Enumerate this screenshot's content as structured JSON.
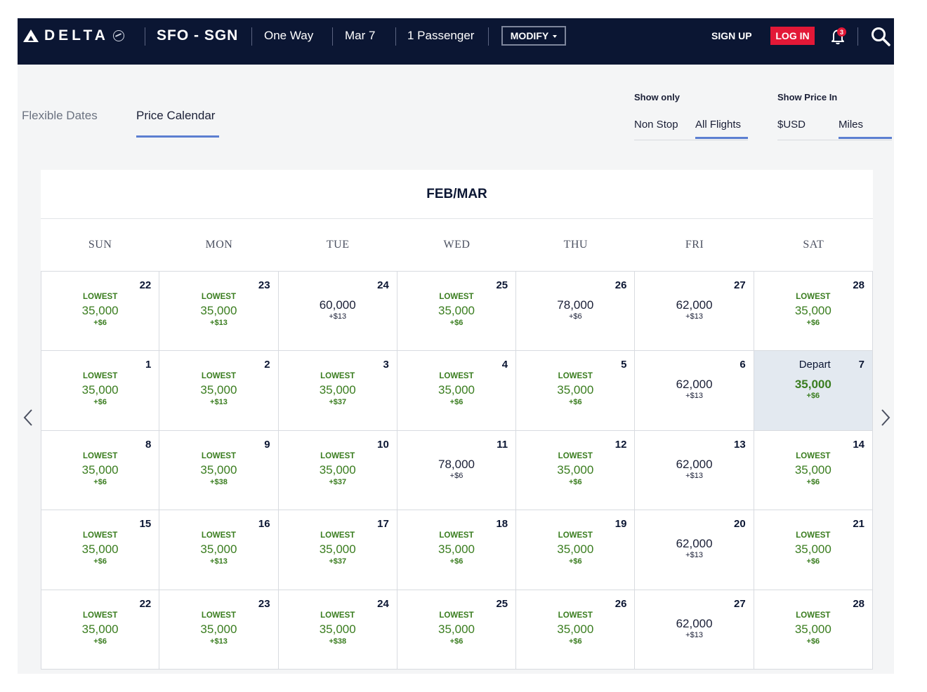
{
  "header": {
    "brand": "DELTA",
    "route": "SFO - SGN",
    "trip_type": "One Way",
    "date": "Mar 7",
    "passengers": "1 Passenger",
    "modify_label": "MODIFY",
    "signup_label": "SIGN UP",
    "login_label": "LOG IN",
    "notification_count": "3"
  },
  "tabs": [
    {
      "label": "Flexible Dates",
      "active": false
    },
    {
      "label": "Price Calendar",
      "active": true
    }
  ],
  "filters": {
    "show_only": {
      "label": "Show only",
      "options": [
        "Non Stop",
        "All Flights"
      ],
      "selected": "All Flights"
    },
    "show_price_in": {
      "label": "Show Price In",
      "options": [
        "$USD",
        "Miles"
      ],
      "selected": "Miles"
    }
  },
  "calendar": {
    "title": "FEB/MAR",
    "days_of_week": [
      "SUN",
      "MON",
      "TUE",
      "WED",
      "THU",
      "FRI",
      "SAT"
    ],
    "cells": [
      {
        "day": "22",
        "lowest": "LOWEST",
        "price": "35,000",
        "fee": "+$6"
      },
      {
        "day": "23",
        "lowest": "LOWEST",
        "price": "35,000",
        "fee": "+$13"
      },
      {
        "day": "24",
        "lowest": "",
        "price": "60,000",
        "fee": "+$13"
      },
      {
        "day": "25",
        "lowest": "LOWEST",
        "price": "35,000",
        "fee": "+$6"
      },
      {
        "day": "26",
        "lowest": "",
        "price": "78,000",
        "fee": "+$6"
      },
      {
        "day": "27",
        "lowest": "",
        "price": "62,000",
        "fee": "+$13"
      },
      {
        "day": "28",
        "lowest": "LOWEST",
        "price": "35,000",
        "fee": "+$6"
      },
      {
        "day": "1",
        "lowest": "LOWEST",
        "price": "35,000",
        "fee": "+$6"
      },
      {
        "day": "2",
        "lowest": "LOWEST",
        "price": "35,000",
        "fee": "+$13"
      },
      {
        "day": "3",
        "lowest": "LOWEST",
        "price": "35,000",
        "fee": "+$37"
      },
      {
        "day": "4",
        "lowest": "LOWEST",
        "price": "35,000",
        "fee": "+$6"
      },
      {
        "day": "5",
        "lowest": "LOWEST",
        "price": "35,000",
        "fee": "+$6"
      },
      {
        "day": "6",
        "lowest": "",
        "price": "62,000",
        "fee": "+$13"
      },
      {
        "day": "7",
        "lowest": "",
        "price": "35,000",
        "fee": "+$6",
        "selected": true,
        "depart_label": "Depart"
      },
      {
        "day": "8",
        "lowest": "LOWEST",
        "price": "35,000",
        "fee": "+$6"
      },
      {
        "day": "9",
        "lowest": "LOWEST",
        "price": "35,000",
        "fee": "+$38"
      },
      {
        "day": "10",
        "lowest": "LOWEST",
        "price": "35,000",
        "fee": "+$37"
      },
      {
        "day": "11",
        "lowest": "",
        "price": "78,000",
        "fee": "+$6"
      },
      {
        "day": "12",
        "lowest": "LOWEST",
        "price": "35,000",
        "fee": "+$6"
      },
      {
        "day": "13",
        "lowest": "",
        "price": "62,000",
        "fee": "+$13"
      },
      {
        "day": "14",
        "lowest": "LOWEST",
        "price": "35,000",
        "fee": "+$6"
      },
      {
        "day": "15",
        "lowest": "LOWEST",
        "price": "35,000",
        "fee": "+$6"
      },
      {
        "day": "16",
        "lowest": "LOWEST",
        "price": "35,000",
        "fee": "+$13"
      },
      {
        "day": "17",
        "lowest": "LOWEST",
        "price": "35,000",
        "fee": "+$37"
      },
      {
        "day": "18",
        "lowest": "LOWEST",
        "price": "35,000",
        "fee": "+$6"
      },
      {
        "day": "19",
        "lowest": "LOWEST",
        "price": "35,000",
        "fee": "+$6"
      },
      {
        "day": "20",
        "lowest": "",
        "price": "62,000",
        "fee": "+$13"
      },
      {
        "day": "21",
        "lowest": "LOWEST",
        "price": "35,000",
        "fee": "+$6"
      },
      {
        "day": "22",
        "lowest": "LOWEST",
        "price": "35,000",
        "fee": "+$6"
      },
      {
        "day": "23",
        "lowest": "LOWEST",
        "price": "35,000",
        "fee": "+$13"
      },
      {
        "day": "24",
        "lowest": "LOWEST",
        "price": "35,000",
        "fee": "+$38"
      },
      {
        "day": "25",
        "lowest": "LOWEST",
        "price": "35,000",
        "fee": "+$6"
      },
      {
        "day": "26",
        "lowest": "LOWEST",
        "price": "35,000",
        "fee": "+$6"
      },
      {
        "day": "27",
        "lowest": "",
        "price": "62,000",
        "fee": "+$13"
      },
      {
        "day": "28",
        "lowest": "LOWEST",
        "price": "35,000",
        "fee": "+$6"
      }
    ]
  },
  "colors": {
    "header_bg": "#0b1633",
    "login_red": "#e31837",
    "accent_blue": "#5c7fd1",
    "price_green": "#3a7d1f",
    "selected_cell": "#e3e9f0"
  },
  "icons": [
    "delta-logo-icon",
    "globe-icon",
    "chevron-down-icon",
    "bell-icon",
    "search-icon",
    "chevron-left-icon",
    "chevron-right-icon"
  ]
}
